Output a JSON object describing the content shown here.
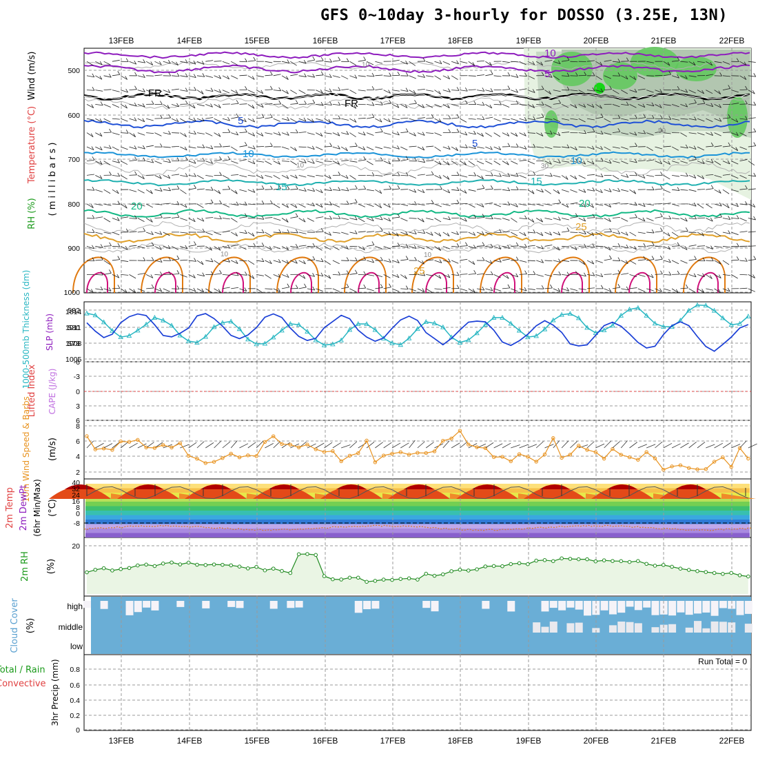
{
  "title": "GFS 0~10day 3-hourly for DOSSO (3.25E, 13N)",
  "dates": [
    "13FEB",
    "14FEB",
    "15FEB",
    "16FEB",
    "17FEB",
    "18FEB",
    "19FEB",
    "20FEB",
    "21FEB",
    "22FEB"
  ],
  "panels": {
    "upper": {
      "label_wind": "Wind (m/s)",
      "label_temp": "Temperature (°C)",
      "label_rh": "RH (%)",
      "label_pressure": "( m i l l i b a r s )",
      "y_ticks": [
        "500",
        "600",
        "700",
        "800",
        "900",
        "1000"
      ],
      "isotherm_labels": [
        "10",
        "5",
        "FR",
        "5",
        "10",
        "15",
        "20",
        "25",
        "FR",
        "5",
        "10",
        "15",
        "20",
        "25"
      ],
      "rh_labels": [
        "10",
        "10",
        "30",
        "50",
        "10",
        "10"
      ]
    },
    "slp": {
      "label_thick": "1000-500mb Thickness (dm)",
      "label_slp": "SLP (mb)",
      "left_ticks": [
        "582",
        "580",
        "578"
      ],
      "right_ticks": [
        "1014",
        "1011",
        "1008",
        "1005"
      ]
    },
    "cape": {
      "label_li": "Lifted Index",
      "label_cape": "CAPE (J/kg)",
      "ticks": [
        "-6",
        "-3",
        "0",
        "3",
        "6"
      ]
    },
    "wind10": {
      "label": "10m Wind Speed & Barbs",
      "unit": "(m/s)",
      "ticks": [
        "8",
        "6",
        "4",
        "2"
      ]
    },
    "temp2m": {
      "label_temp": "2m Temp",
      "label_dew": "2m DewPt",
      "label_minmax": "(6hr Min/Max)",
      "unit": "(°C)",
      "ticks": [
        "40",
        "32",
        "24",
        "16",
        "8",
        "0",
        "-8"
      ]
    },
    "rh2m": {
      "label": "2m RH",
      "unit": "(%)",
      "ticks": [
        "20"
      ]
    },
    "cloud": {
      "label": "Cloud Cover",
      "unit": "(%)",
      "levels": [
        "high",
        "middle",
        "low"
      ]
    },
    "precip": {
      "label_total": "Total / Rain",
      "label_conv": "Convective",
      "label_unit": "3hr Precip (mm)",
      "ticks": [
        "0.8",
        "0.6",
        "0.4",
        "0.2",
        "0"
      ],
      "run_total": "Run Total = 0"
    }
  },
  "colors": {
    "slp_line": "#1a3fd6",
    "thickness_line": "#27b6c2",
    "wind_line": "#e8921e",
    "rh_line": "#1f8a1f",
    "cloud": "#6aaed6",
    "li_dash": "#e04040"
  },
  "chart_data": [
    {
      "type": "line",
      "title": "GFS 0~10day 3-hourly for DOSSO (3.25E, 13N)",
      "panel": "SLP / Thickness",
      "x": [
        "13FEB",
        "14FEB",
        "15FEB",
        "16FEB",
        "17FEB",
        "18FEB",
        "19FEB",
        "20FEB",
        "21FEB",
        "22FEB"
      ],
      "series": [
        {
          "name": "SLP (mb)",
          "values": [
            1012.5,
            1013.5,
            1012.5,
            1014.0,
            1011.0,
            1013.5,
            1008.0,
            1010.0,
            1007.0,
            1006.5
          ]
        },
        {
          "name": "1000-500mb Thickness (dm)",
          "values": [
            580.5,
            581.0,
            580.5,
            577.0,
            577.2,
            577.0,
            578.7,
            577.8,
            579.5,
            579.0
          ]
        }
      ]
    },
    {
      "type": "line",
      "panel": "10m Wind Speed",
      "x": [
        "13FEB",
        "14FEB",
        "15FEB",
        "16FEB",
        "17FEB",
        "18FEB",
        "19FEB",
        "20FEB",
        "21FEB",
        "22FEB"
      ],
      "ylim": [
        2,
        8
      ],
      "series": [
        {
          "name": "10m Wind Speed (m/s)",
          "values": [
            4.5,
            4.2,
            4.8,
            4.5,
            3.8,
            4.5,
            4.0,
            3.2,
            2.5,
            3.8
          ]
        }
      ]
    },
    {
      "type": "area",
      "panel": "2m Temp",
      "x": [
        "13FEB",
        "14FEB",
        "15FEB",
        "16FEB",
        "17FEB",
        "18FEB",
        "19FEB",
        "20FEB",
        "21FEB",
        "22FEB"
      ],
      "ylim": [
        -12,
        42
      ],
      "series": [
        {
          "name": "2m Temp (°C)",
          "values": [
            30,
            30,
            30,
            30,
            30,
            30,
            30,
            30,
            30,
            30
          ]
        },
        {
          "name": "2m DewPt (°C)",
          "values": [
            -8,
            -8,
            -6,
            -3,
            -8,
            -6,
            -5,
            -4,
            -5,
            -5
          ]
        }
      ]
    },
    {
      "type": "line",
      "panel": "2m RH",
      "x": [
        "13FEB",
        "14FEB",
        "15FEB",
        "16FEB",
        "17FEB",
        "18FEB",
        "19FEB",
        "20FEB",
        "21FEB",
        "22FEB"
      ],
      "series": [
        {
          "name": "2m RH (%)",
          "values": [
            8,
            7,
            9,
            12,
            9,
            11,
            10,
            9,
            9,
            12
          ]
        }
      ]
    },
    {
      "type": "bar",
      "panel": "3hr Precip",
      "x": [
        "13FEB",
        "14FEB",
        "15FEB",
        "16FEB",
        "17FEB",
        "18FEB",
        "19FEB",
        "20FEB",
        "21FEB",
        "22FEB"
      ],
      "ylim": [
        0,
        0.9
      ],
      "series": [
        {
          "name": "3hr Precip (mm)",
          "values": [
            0,
            0,
            0,
            0,
            0,
            0,
            0,
            0,
            0,
            0
          ]
        }
      ]
    }
  ]
}
